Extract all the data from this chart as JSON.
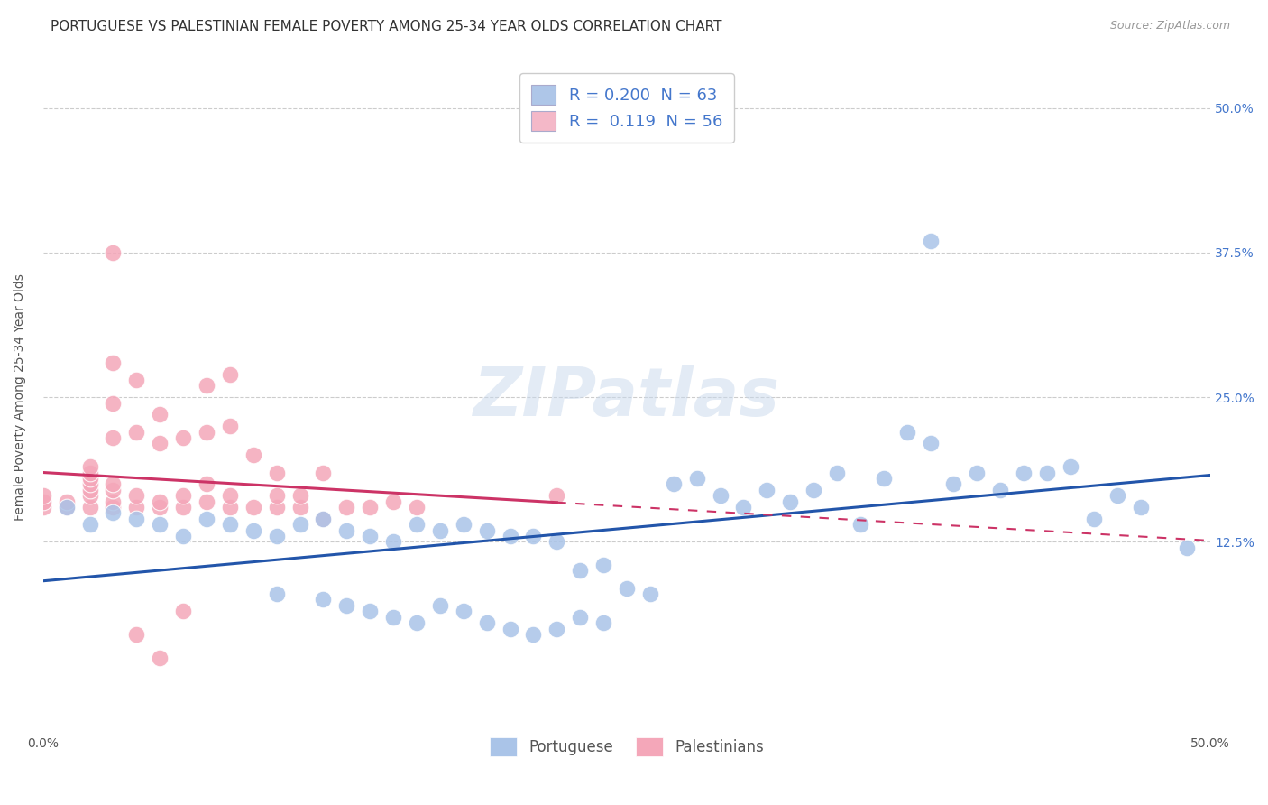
{
  "title": "PORTUGUESE VS PALESTINIAN FEMALE POVERTY AMONG 25-34 YEAR OLDS CORRELATION CHART",
  "source": "Source: ZipAtlas.com",
  "ylabel": "Female Poverty Among 25-34 Year Olds",
  "xlim": [
    0.0,
    0.5
  ],
  "ylim": [
    -0.04,
    0.54
  ],
  "ytick_labels": [
    "12.5%",
    "25.0%",
    "37.5%",
    "50.0%"
  ],
  "ytick_values": [
    0.125,
    0.25,
    0.375,
    0.5
  ],
  "portuguese_R": "0.200",
  "portuguese_N": "63",
  "palestinian_R": "0.119",
  "palestinian_N": "56",
  "portuguese_color": "#aac4e8",
  "palestinian_color": "#f4a7b9",
  "portuguese_line_color": "#2255aa",
  "palestinian_line_color": "#cc3366",
  "legend_color_port": "#aec6e8",
  "legend_color_pal": "#f4b8c8",
  "legend_text_color": "#4477cc",
  "watermark": "ZIPatlas",
  "background_color": "#ffffff",
  "grid_color": "#cccccc",
  "title_fontsize": 11,
  "axis_fontsize": 10,
  "tick_fontsize": 10,
  "legend_label_portuguese": "Portuguese",
  "legend_label_palestinian": "Palestinians",
  "portuguese_points": [
    [
      0.01,
      0.155
    ],
    [
      0.02,
      0.14
    ],
    [
      0.03,
      0.15
    ],
    [
      0.04,
      0.145
    ],
    [
      0.05,
      0.14
    ],
    [
      0.06,
      0.13
    ],
    [
      0.07,
      0.145
    ],
    [
      0.08,
      0.14
    ],
    [
      0.09,
      0.135
    ],
    [
      0.1,
      0.13
    ],
    [
      0.11,
      0.14
    ],
    [
      0.12,
      0.145
    ],
    [
      0.13,
      0.135
    ],
    [
      0.14,
      0.13
    ],
    [
      0.15,
      0.125
    ],
    [
      0.16,
      0.14
    ],
    [
      0.17,
      0.135
    ],
    [
      0.18,
      0.14
    ],
    [
      0.19,
      0.135
    ],
    [
      0.2,
      0.13
    ],
    [
      0.21,
      0.13
    ],
    [
      0.22,
      0.125
    ],
    [
      0.23,
      0.1
    ],
    [
      0.24,
      0.105
    ],
    [
      0.1,
      0.08
    ],
    [
      0.12,
      0.075
    ],
    [
      0.13,
      0.07
    ],
    [
      0.14,
      0.065
    ],
    [
      0.15,
      0.06
    ],
    [
      0.16,
      0.055
    ],
    [
      0.17,
      0.07
    ],
    [
      0.18,
      0.065
    ],
    [
      0.19,
      0.055
    ],
    [
      0.2,
      0.05
    ],
    [
      0.21,
      0.045
    ],
    [
      0.22,
      0.05
    ],
    [
      0.23,
      0.06
    ],
    [
      0.24,
      0.055
    ],
    [
      0.25,
      0.085
    ],
    [
      0.26,
      0.08
    ],
    [
      0.27,
      0.175
    ],
    [
      0.28,
      0.18
    ],
    [
      0.29,
      0.165
    ],
    [
      0.3,
      0.155
    ],
    [
      0.31,
      0.17
    ],
    [
      0.32,
      0.16
    ],
    [
      0.33,
      0.17
    ],
    [
      0.34,
      0.185
    ],
    [
      0.35,
      0.14
    ],
    [
      0.36,
      0.18
    ],
    [
      0.37,
      0.22
    ],
    [
      0.38,
      0.21
    ],
    [
      0.39,
      0.175
    ],
    [
      0.4,
      0.185
    ],
    [
      0.41,
      0.17
    ],
    [
      0.42,
      0.185
    ],
    [
      0.43,
      0.185
    ],
    [
      0.44,
      0.19
    ],
    [
      0.45,
      0.145
    ],
    [
      0.46,
      0.165
    ],
    [
      0.47,
      0.155
    ],
    [
      0.49,
      0.12
    ],
    [
      0.38,
      0.385
    ]
  ],
  "palestinian_points": [
    [
      0.01,
      0.155
    ],
    [
      0.01,
      0.16
    ],
    [
      0.02,
      0.155
    ],
    [
      0.02,
      0.165
    ],
    [
      0.02,
      0.17
    ],
    [
      0.02,
      0.175
    ],
    [
      0.02,
      0.18
    ],
    [
      0.02,
      0.185
    ],
    [
      0.02,
      0.19
    ],
    [
      0.03,
      0.155
    ],
    [
      0.03,
      0.16
    ],
    [
      0.03,
      0.17
    ],
    [
      0.03,
      0.175
    ],
    [
      0.03,
      0.215
    ],
    [
      0.03,
      0.245
    ],
    [
      0.03,
      0.28
    ],
    [
      0.03,
      0.375
    ],
    [
      0.04,
      0.155
    ],
    [
      0.04,
      0.165
    ],
    [
      0.04,
      0.22
    ],
    [
      0.04,
      0.265
    ],
    [
      0.05,
      0.155
    ],
    [
      0.05,
      0.16
    ],
    [
      0.05,
      0.21
    ],
    [
      0.05,
      0.235
    ],
    [
      0.06,
      0.155
    ],
    [
      0.06,
      0.165
    ],
    [
      0.06,
      0.215
    ],
    [
      0.07,
      0.16
    ],
    [
      0.07,
      0.175
    ],
    [
      0.07,
      0.22
    ],
    [
      0.07,
      0.26
    ],
    [
      0.08,
      0.155
    ],
    [
      0.08,
      0.165
    ],
    [
      0.08,
      0.225
    ],
    [
      0.08,
      0.27
    ],
    [
      0.09,
      0.155
    ],
    [
      0.09,
      0.2
    ],
    [
      0.1,
      0.155
    ],
    [
      0.1,
      0.165
    ],
    [
      0.1,
      0.185
    ],
    [
      0.11,
      0.155
    ],
    [
      0.11,
      0.165
    ],
    [
      0.12,
      0.145
    ],
    [
      0.12,
      0.185
    ],
    [
      0.13,
      0.155
    ],
    [
      0.14,
      0.155
    ],
    [
      0.15,
      0.16
    ],
    [
      0.16,
      0.155
    ],
    [
      0.04,
      0.045
    ],
    [
      0.05,
      0.025
    ],
    [
      0.06,
      0.065
    ],
    [
      0.0,
      0.155
    ],
    [
      0.0,
      0.16
    ],
    [
      0.0,
      0.165
    ],
    [
      0.22,
      0.165
    ]
  ]
}
